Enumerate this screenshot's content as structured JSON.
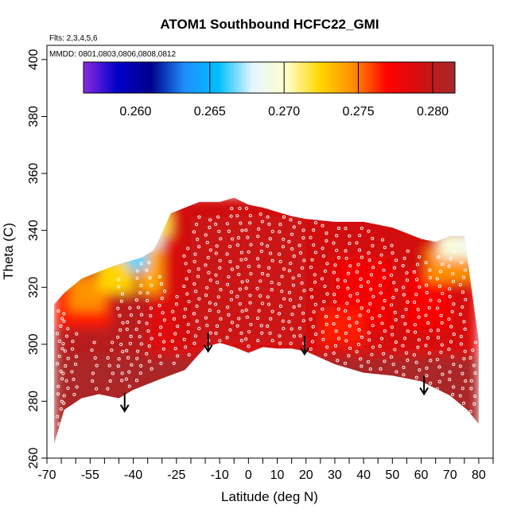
{
  "chart_data": {
    "type": "heatmap",
    "title": "ATOM1 Southbound HCFC22_GMI",
    "xlabel": "Latitude (deg N)",
    "ylabel": "Theta (C)",
    "xlim": [
      -70,
      85
    ],
    "ylim": [
      260,
      405
    ],
    "x_ticks": [
      -70,
      -55,
      -40,
      -25,
      -10,
      0,
      10,
      20,
      30,
      40,
      50,
      60,
      70,
      80
    ],
    "x_minor_ticks": [
      -65,
      -60,
      -50,
      -45,
      -35,
      -30,
      -20,
      -15,
      -5,
      5,
      15,
      25,
      35,
      45,
      55,
      65,
      75,
      85
    ],
    "y_ticks": [
      260,
      280,
      300,
      320,
      340,
      360,
      380,
      400
    ],
    "notes": {
      "flights": "Flts: 2,3,4,5,6",
      "dates": "MMDD: 0801,0803,0806,0808,0812"
    },
    "colorbar": {
      "range": [
        0.2565,
        0.2815
      ],
      "ticks": [
        0.26,
        0.265,
        0.27,
        0.275,
        0.28
      ],
      "tick_labels": [
        "0.260",
        "0.265",
        "0.270",
        "0.275",
        "0.280"
      ],
      "divider_values": [
        0.265,
        0.27,
        0.275,
        0.28
      ],
      "colors": [
        "#8a2be2",
        "#0000c8",
        "#00008b",
        "#1e90ff",
        "#00bfff",
        "#e6f5ff",
        "#ffffcc",
        "#ffd700",
        "#ff8c00",
        "#ff0000",
        "#d01010",
        "#a52a2a"
      ]
    },
    "lower_boundary": {
      "lat": [
        -67.5,
        -64,
        -58,
        -52,
        -45,
        -40,
        -30,
        -22,
        -15,
        -10,
        -5,
        0,
        5,
        10,
        15,
        20,
        30,
        40,
        50,
        60,
        70,
        76,
        80
      ],
      "theta": [
        265,
        277,
        281,
        282.5,
        281,
        284,
        288,
        291,
        299,
        300.5,
        299,
        297,
        299,
        298.5,
        298.5,
        297.5,
        293,
        290,
        289,
        287,
        282,
        277,
        272
      ]
    },
    "upper_boundary": {
      "lat": [
        -67.5,
        -64,
        -58,
        -52,
        -47,
        -42,
        -37,
        -33,
        -31,
        -27,
        -22,
        -17,
        -10,
        -5,
        0,
        5,
        10,
        15,
        20,
        30,
        40,
        50,
        60,
        65,
        70,
        75,
        80
      ],
      "theta": [
        314,
        318,
        323,
        325.5,
        327.5,
        329,
        330.5,
        333,
        337,
        346,
        348,
        350,
        350,
        351.5,
        349,
        348,
        346.5,
        345,
        344,
        343,
        343,
        341,
        337,
        336,
        338,
        338,
        301
      ]
    },
    "field_regions": [
      {
        "lat": [
          -67.5,
          80
        ],
        "theta": [
          260,
          352
        ],
        "value": 0.2785
      },
      {
        "lat": [
          -67.5,
          -35
        ],
        "theta": [
          296,
          352
        ],
        "value": 0.2805
      },
      {
        "lat": [
          -67.5,
          -48
        ],
        "theta": [
          306,
          322
        ],
        "value": 0.2765
      },
      {
        "lat": [
          -62,
          -50
        ],
        "theta": [
          312,
          324
        ],
        "value": 0.2745
      },
      {
        "lat": [
          -52,
          -40
        ],
        "theta": [
          318,
          330
        ],
        "value": 0.2725
      },
      {
        "lat": [
          -38,
          -30
        ],
        "theta": [
          318,
          338
        ],
        "value": 0.2738
      },
      {
        "lat": [
          -48,
          -40
        ],
        "theta": [
          330,
          338
        ],
        "value": 0.2655
      },
      {
        "lat": [
          -42,
          -35
        ],
        "theta": [
          326,
          342
        ],
        "value": 0.2665
      },
      {
        "lat": [
          -38,
          -30
        ],
        "theta": [
          334,
          344
        ],
        "value": 0.2678
      },
      {
        "lat": [
          -33,
          -27
        ],
        "theta": [
          338,
          347
        ],
        "value": 0.2715
      },
      {
        "lat": [
          -25,
          75
        ],
        "theta": [
          300,
          352
        ],
        "value": 0.2792
      },
      {
        "lat": [
          -20,
          20
        ],
        "theta": [
          300,
          345
        ],
        "value": 0.2795
      },
      {
        "lat": [
          30,
          50
        ],
        "theta": [
          305,
          330
        ],
        "value": 0.2775
      },
      {
        "lat": [
          25,
          40
        ],
        "theta": [
          300,
          312
        ],
        "value": 0.2765
      },
      {
        "lat": [
          55,
          70
        ],
        "theta": [
          305,
          325
        ],
        "value": 0.2772
      },
      {
        "lat": [
          62,
          78
        ],
        "theta": [
          322,
          334
        ],
        "value": 0.2745
      },
      {
        "lat": [
          66,
          80
        ],
        "theta": [
          330,
          339
        ],
        "value": 0.2695
      },
      {
        "lat": [
          74,
          80
        ],
        "theta": [
          332,
          339
        ],
        "value": 0.2685
      },
      {
        "lat": [
          -67.5,
          80
        ],
        "theta": [
          260,
          296
        ],
        "value": 0.2812
      }
    ],
    "profile_markers": [
      {
        "lat": -65.5,
        "theta_range": [
          268,
          313
        ]
      },
      {
        "lat": -63.5,
        "theta_range": [
          278,
          312
        ]
      },
      {
        "lat": -60.5,
        "theta_range": [
          281,
          305
        ]
      },
      {
        "lat": -53.5,
        "theta_range": [
          283,
          302
        ]
      },
      {
        "lat": -48,
        "theta_range": [
          283,
          302
        ]
      },
      {
        "lat": -44.5,
        "theta_range": [
          286,
          324
        ]
      },
      {
        "lat": -41.5,
        "theta_range": [
          284,
          314
        ]
      },
      {
        "lat": -38,
        "theta_range": [
          286,
          345
        ]
      },
      {
        "lat": -34.5,
        "theta_range": [
          290,
          330
        ]
      },
      {
        "lat": -30,
        "theta_range": [
          292,
          325
        ]
      },
      {
        "lat": -25.5,
        "theta_range": [
          292,
          318
        ]
      },
      {
        "lat": -21.5,
        "theta_range": [
          295,
          335
        ]
      },
      {
        "lat": -18,
        "theta_range": [
          299,
          346
        ]
      },
      {
        "lat": -14,
        "theta_range": [
          300,
          345
        ]
      },
      {
        "lat": -10.5,
        "theta_range": [
          300,
          346
        ]
      },
      {
        "lat": -6.5,
        "theta_range": [
          301,
          349
        ]
      },
      {
        "lat": -3,
        "theta_range": [
          300,
          349
        ]
      },
      {
        "lat": 0,
        "theta_range": [
          298,
          349
        ]
      },
      {
        "lat": 4,
        "theta_range": [
          300,
          347
        ]
      },
      {
        "lat": 7.5,
        "theta_range": [
          300,
          346
        ]
      },
      {
        "lat": 11.5,
        "theta_range": [
          299,
          346
        ]
      },
      {
        "lat": 15,
        "theta_range": [
          299,
          345
        ]
      },
      {
        "lat": 18.5,
        "theta_range": [
          299,
          344
        ]
      },
      {
        "lat": 22.5,
        "theta_range": [
          297,
          344
        ]
      },
      {
        "lat": 26.5,
        "theta_range": [
          295,
          343
        ]
      },
      {
        "lat": 30.5,
        "theta_range": [
          293,
          342
        ]
      },
      {
        "lat": 34.5,
        "theta_range": [
          292,
          342
        ]
      },
      {
        "lat": 38.5,
        "theta_range": [
          291,
          342
        ]
      },
      {
        "lat": 42.5,
        "theta_range": [
          290,
          341
        ]
      },
      {
        "lat": 46.5,
        "theta_range": [
          290,
          338
        ]
      },
      {
        "lat": 50.5,
        "theta_range": [
          289,
          336
        ]
      },
      {
        "lat": 54.5,
        "theta_range": [
          288,
          334
        ]
      },
      {
        "lat": 58.5,
        "theta_range": [
          287,
          332
        ]
      },
      {
        "lat": 62.5,
        "theta_range": [
          285,
          330
        ]
      },
      {
        "lat": 66.5,
        "theta_range": [
          283,
          332
        ]
      },
      {
        "lat": 70.5,
        "theta_range": [
          281,
          334
        ]
      },
      {
        "lat": 74.5,
        "theta_range": [
          278,
          330
        ]
      },
      {
        "lat": 78,
        "theta_range": [
          275,
          302
        ]
      }
    ],
    "arrows": [
      {
        "lat": -43,
        "theta_top": 283,
        "theta_tip": 276.5
      },
      {
        "lat": -14,
        "theta_top": 304,
        "theta_tip": 297.5
      },
      {
        "lat": 19.5,
        "theta_top": 303,
        "theta_tip": 296.5
      },
      {
        "lat": 61,
        "theta_top": 289,
        "theta_tip": 282.5
      }
    ]
  }
}
